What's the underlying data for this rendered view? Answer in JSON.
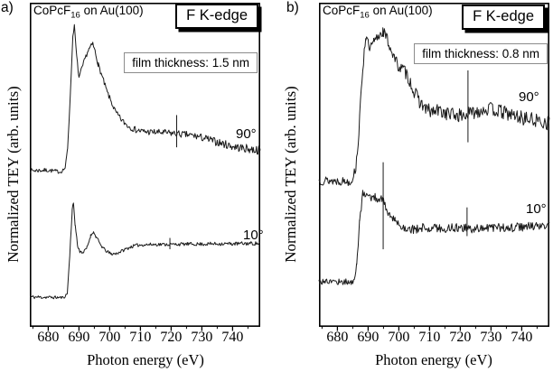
{
  "panel_letters": [
    "a)",
    "b)"
  ],
  "style": {
    "background": "#ffffff",
    "curve_color": "#1a1a1a",
    "frame_color": "#000000",
    "annotation_box_border": "#8c8c8c"
  },
  "chart_data": [
    {
      "panel": "a",
      "type": "line",
      "title": "CoPcF16 on Au(100)",
      "title_parts": {
        "prefix": "CoPcF",
        "sub": "16",
        "suffix": " on Au(100)"
      },
      "edge_label": "F K-edge",
      "annotation": "film thickness: 1.5 nm",
      "xlabel": "Photon energy (eV)",
      "ylabel": "Normalized TEY (arb. units)",
      "xlim": [
        674,
        749
      ],
      "xticks": [
        680,
        690,
        700,
        710,
        720,
        730,
        740
      ],
      "xtick_minor_step": 5,
      "grid": false,
      "y_units": "arbitrary units (fraction of axis height)",
      "series": [
        {
          "name": "90°",
          "seed": 7,
          "anchors": [
            [
              674,
              0.482
            ],
            [
              680,
              0.483
            ],
            [
              684,
              0.478
            ],
            [
              685.5,
              0.49
            ],
            [
              686.3,
              0.55
            ],
            [
              687.2,
              0.72
            ],
            [
              688,
              0.9
            ],
            [
              688.5,
              0.933
            ],
            [
              689.2,
              0.84
            ],
            [
              690,
              0.771
            ],
            [
              691,
              0.8
            ],
            [
              692,
              0.83
            ],
            [
              693,
              0.855
            ],
            [
              694.5,
              0.875
            ],
            [
              695.3,
              0.85
            ],
            [
              696.3,
              0.81
            ],
            [
              697.5,
              0.775
            ],
            [
              699,
              0.73
            ],
            [
              700.5,
              0.695
            ],
            [
              702,
              0.662
            ],
            [
              704,
              0.637
            ],
            [
              706,
              0.62
            ],
            [
              708.5,
              0.608
            ],
            [
              711,
              0.603
            ],
            [
              714,
              0.601
            ],
            [
              717,
              0.6
            ],
            [
              720,
              0.598
            ],
            [
              722,
              0.596
            ],
            [
              725,
              0.593
            ],
            [
              728,
              0.589
            ],
            [
              731,
              0.582
            ],
            [
              734,
              0.573
            ],
            [
              737,
              0.565
            ],
            [
              740,
              0.557
            ],
            [
              743,
              0.552
            ],
            [
              746,
              0.548
            ],
            [
              749,
              0.545
            ]
          ],
          "noise": [
            [
              674,
              0.007
            ],
            [
              684,
              0.006
            ],
            [
              687,
              0.003
            ],
            [
              690,
              0.007
            ],
            [
              696,
              0.008
            ],
            [
              703,
              0.009
            ],
            [
              712,
              0.01
            ],
            [
              725,
              0.011
            ],
            [
              740,
              0.013
            ],
            [
              749,
              0.014
            ]
          ],
          "spikes": [
            {
              "x": 721.8,
              "up": 0.058,
              "down": 0.042
            }
          ]
        },
        {
          "name": "10°",
          "seed": 11,
          "anchors": [
            [
              674,
              0.09
            ],
            [
              680,
              0.089
            ],
            [
              685,
              0.088
            ],
            [
              686.2,
              0.1
            ],
            [
              687,
              0.22
            ],
            [
              687.8,
              0.36
            ],
            [
              688.2,
              0.382
            ],
            [
              688.8,
              0.31
            ],
            [
              689.6,
              0.245
            ],
            [
              690.3,
              0.231
            ],
            [
              691.5,
              0.228
            ],
            [
              692.6,
              0.243
            ],
            [
              693.8,
              0.28
            ],
            [
              694.6,
              0.292
            ],
            [
              695.6,
              0.276
            ],
            [
              697,
              0.252
            ],
            [
              698.5,
              0.235
            ],
            [
              700.3,
              0.224
            ],
            [
              702,
              0.224
            ],
            [
              704,
              0.233
            ],
            [
              706.5,
              0.244
            ],
            [
              708.5,
              0.25
            ],
            [
              711,
              0.252
            ],
            [
              715,
              0.253
            ],
            [
              720,
              0.253
            ],
            [
              725,
              0.254
            ],
            [
              730,
              0.254
            ],
            [
              735,
              0.255
            ],
            [
              740,
              0.255
            ],
            [
              745,
              0.256
            ],
            [
              749,
              0.256
            ]
          ],
          "noise": [
            [
              674,
              0.006
            ],
            [
              686,
              0.004
            ],
            [
              690,
              0.005
            ],
            [
              700,
              0.005
            ],
            [
              720,
              0.005
            ],
            [
              749,
              0.006
            ]
          ],
          "spikes": [
            {
              "x": 719.6,
              "up": 0.02,
              "down": 0.015
            }
          ]
        }
      ]
    },
    {
      "panel": "b",
      "type": "line",
      "title": "CoPcF16 on Au(100)",
      "title_parts": {
        "prefix": "CoPcF",
        "sub": "16",
        "suffix": " on Au(100)"
      },
      "edge_label": "F K-edge",
      "annotation": "film thickness: 0.8 nm",
      "xlabel": "Photon energy (eV)",
      "ylabel": "Normalized TEY (arb. units)",
      "xlim": [
        674,
        749
      ],
      "xticks": [
        680,
        690,
        700,
        710,
        720,
        730,
        740
      ],
      "xtick_minor_step": 5,
      "grid": false,
      "y_units": "arbitrary units (fraction of axis height)",
      "series": [
        {
          "name": "90°",
          "seed": 13,
          "anchors": [
            [
              674,
              0.452
            ],
            [
              680,
              0.45
            ],
            [
              684.5,
              0.448
            ],
            [
              686,
              0.49
            ],
            [
              687,
              0.6
            ],
            [
              688,
              0.77
            ],
            [
              689.2,
              0.9
            ],
            [
              690.5,
              0.857
            ],
            [
              691.8,
              0.878
            ],
            [
              693,
              0.895
            ],
            [
              694.8,
              0.915
            ],
            [
              696,
              0.893
            ],
            [
              697.5,
              0.858
            ],
            [
              699,
              0.82
            ],
            [
              700.5,
              0.8
            ],
            [
              702,
              0.79
            ],
            [
              703.5,
              0.762
            ],
            [
              705,
              0.725
            ],
            [
              706.5,
              0.7
            ],
            [
              708.5,
              0.676
            ],
            [
              710.5,
              0.663
            ],
            [
              713,
              0.668
            ],
            [
              715.5,
              0.66
            ],
            [
              718,
              0.655
            ],
            [
              720.5,
              0.652
            ],
            [
              723,
              0.658
            ],
            [
              725.5,
              0.667
            ],
            [
              728,
              0.673
            ],
            [
              730.5,
              0.672
            ],
            [
              733,
              0.665
            ],
            [
              735.5,
              0.658
            ],
            [
              738,
              0.651
            ],
            [
              740.5,
              0.645
            ],
            [
              743,
              0.64
            ],
            [
              746,
              0.635
            ],
            [
              749,
              0.63
            ]
          ],
          "noise": [
            [
              674,
              0.015
            ],
            [
              685,
              0.013
            ],
            [
              688,
              0.016
            ],
            [
              695,
              0.018
            ],
            [
              702,
              0.02
            ],
            [
              710,
              0.022
            ],
            [
              730,
              0.022
            ],
            [
              749,
              0.023
            ]
          ],
          "spikes": [
            {
              "x": 722.5,
              "up": 0.136,
              "down": 0.087
            }
          ]
        },
        {
          "name": "10°",
          "seed": 17,
          "anchors": [
            [
              674,
              0.139
            ],
            [
              680,
              0.138
            ],
            [
              685.3,
              0.136
            ],
            [
              686.3,
              0.19
            ],
            [
              687.2,
              0.32
            ],
            [
              688.3,
              0.415
            ],
            [
              689.5,
              0.405
            ],
            [
              690.8,
              0.398
            ],
            [
              692,
              0.402
            ],
            [
              693.2,
              0.392
            ],
            [
              694.5,
              0.398
            ],
            [
              695.8,
              0.365
            ],
            [
              697.2,
              0.34
            ],
            [
              698.8,
              0.325
            ],
            [
              700.5,
              0.312
            ],
            [
              702.5,
              0.304
            ],
            [
              705,
              0.3
            ],
            [
              708,
              0.304
            ],
            [
              711,
              0.306
            ],
            [
              714,
              0.302
            ],
            [
              717,
              0.304
            ],
            [
              720,
              0.305
            ],
            [
              723,
              0.302
            ],
            [
              726,
              0.303
            ],
            [
              729,
              0.307
            ],
            [
              732,
              0.306
            ],
            [
              735,
              0.304
            ],
            [
              738,
              0.306
            ],
            [
              741,
              0.308
            ],
            [
              744,
              0.308
            ],
            [
              747,
              0.31
            ],
            [
              749,
              0.312
            ]
          ],
          "noise": [
            [
              674,
              0.012
            ],
            [
              686,
              0.009
            ],
            [
              689,
              0.012
            ],
            [
              696,
              0.013
            ],
            [
              705,
              0.014
            ],
            [
              730,
              0.014
            ],
            [
              749,
              0.015
            ]
          ],
          "spikes": [
            {
              "x": 694.9,
              "up": 0.12,
              "down": 0.15
            },
            {
              "x": 722.2,
              "up": 0.065,
              "down": 0.024
            }
          ]
        }
      ]
    }
  ]
}
